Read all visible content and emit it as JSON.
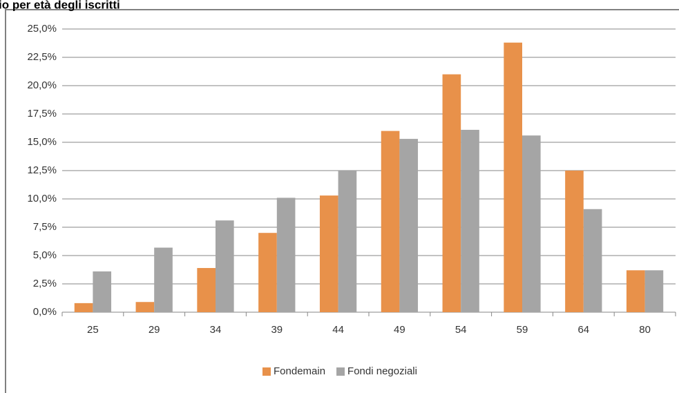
{
  "chart_data": {
    "type": "bar",
    "title": "io per età degli iscritti",
    "categories": [
      "25",
      "29",
      "34",
      "39",
      "44",
      "49",
      "54",
      "59",
      "64",
      "80"
    ],
    "series": [
      {
        "name": "Fondemain",
        "color": "#e8914a",
        "values": [
          0.8,
          0.9,
          3.9,
          7.0,
          10.3,
          16.0,
          21.0,
          23.8,
          12.5,
          3.7
        ]
      },
      {
        "name": "Fondi negoziali",
        "color": "#a5a5a5",
        "values": [
          3.6,
          5.7,
          8.1,
          10.1,
          12.5,
          15.3,
          16.1,
          15.6,
          9.1,
          3.7
        ]
      }
    ],
    "ylim": [
      0,
      25
    ],
    "yticks": [
      {
        "value": 0,
        "label": "0,0%"
      },
      {
        "value": 2.5,
        "label": "2,5%"
      },
      {
        "value": 5,
        "label": "5,0%"
      },
      {
        "value": 7.5,
        "label": "7,5%"
      },
      {
        "value": 10,
        "label": "10,0%"
      },
      {
        "value": 12.5,
        "label": "12,5%"
      },
      {
        "value": 15,
        "label": "15,0%"
      },
      {
        "value": 17.5,
        "label": "17,5%"
      },
      {
        "value": 20,
        "label": "20,0%"
      },
      {
        "value": 22.5,
        "label": "22,5%"
      },
      {
        "value": 25,
        "label": "25,0%"
      }
    ],
    "grid": true,
    "legend": "bottom"
  }
}
